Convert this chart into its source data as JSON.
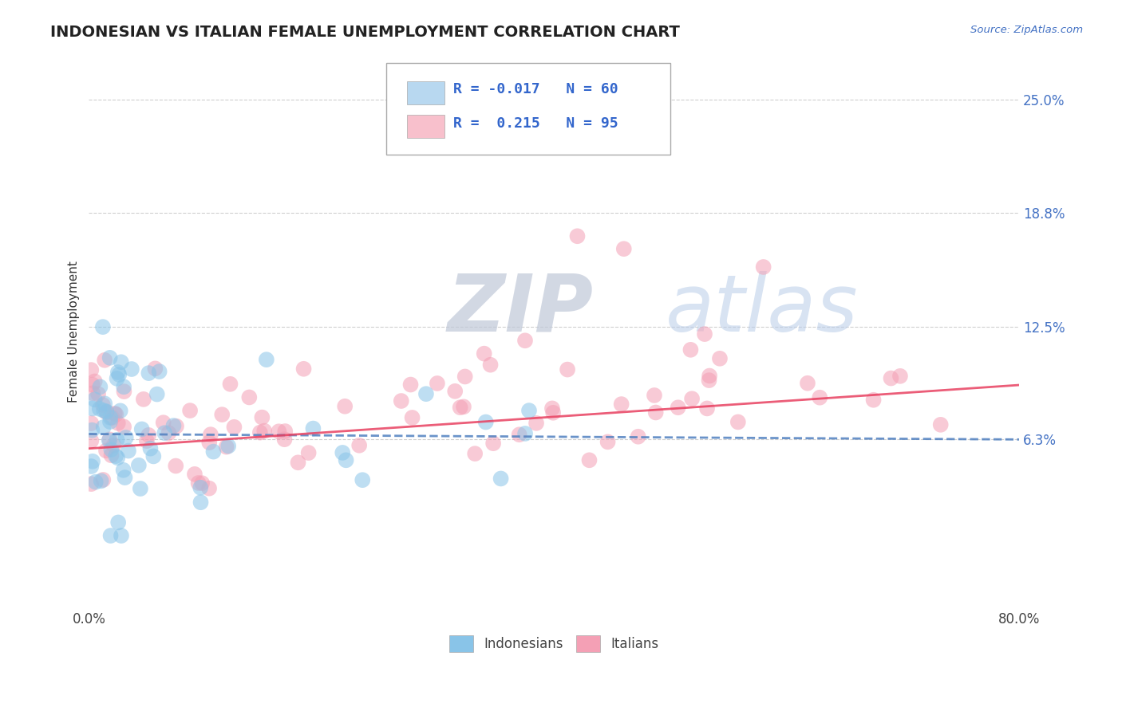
{
  "title": "INDONESIAN VS ITALIAN FEMALE UNEMPLOYMENT CORRELATION CHART",
  "source": "Source: ZipAtlas.com",
  "ylabel": "Female Unemployment",
  "y_tick_labels": [
    "6.3%",
    "12.5%",
    "18.8%",
    "25.0%"
  ],
  "y_tick_values": [
    0.063,
    0.125,
    0.188,
    0.25
  ],
  "xlim": [
    0.0,
    0.8
  ],
  "ylim": [
    -0.03,
    0.275
  ],
  "indonesian_color": "#89C4E8",
  "italian_color": "#F4A0B5",
  "indonesian_line_color": "#5080C0",
  "italian_line_color": "#E84060",
  "legend_blue_fill": "#B8D8F0",
  "legend_pink_fill": "#F8C0CC",
  "R_indonesian": -0.017,
  "N_indonesian": 60,
  "R_italian": 0.215,
  "N_italian": 95,
  "title_fontsize": 14,
  "axis_label_fontsize": 11,
  "tick_fontsize": 12,
  "legend_fontsize": 13,
  "watermark_zip": "ZIP",
  "watermark_atlas": "atlas",
  "watermark_color_zip": "#C0C8D8",
  "watermark_color_atlas": "#B8CCE8",
  "background_color": "#FFFFFF",
  "grid_color": "#BBBBBB"
}
